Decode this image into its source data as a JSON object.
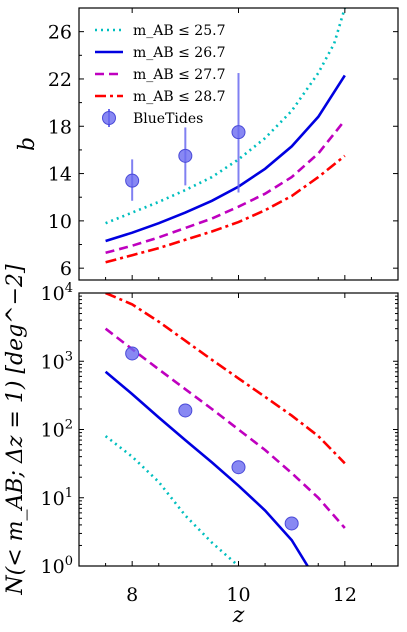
{
  "figure": {
    "x_label": "z",
    "top_y_label": "b",
    "bottom_y_label": "N(< m_AB; Δz = 1) [deg^−2]"
  },
  "chart_data": [
    {
      "type": "line",
      "panel": "top",
      "xlim": [
        7,
        13
      ],
      "ylim": [
        5,
        28
      ],
      "x_ticks": [
        8,
        10,
        12
      ],
      "y_ticks": [
        6,
        10,
        14,
        18,
        22,
        26
      ],
      "grid": false,
      "legend": "upper-left",
      "ylabel": "b",
      "series": [
        {
          "name": "m_AB ≤ 25.7",
          "color": "#00bfbf",
          "style": "dotted",
          "points": [
            [
              7.5,
              9.8
            ],
            [
              8,
              10.7
            ],
            [
              8.5,
              11.6
            ],
            [
              9,
              12.6
            ],
            [
              9.5,
              13.7
            ],
            [
              10,
              15.2
            ],
            [
              10.5,
              17.0
            ],
            [
              11,
              19.3
            ],
            [
              11.5,
              22.5
            ],
            [
              11.8,
              25.0
            ],
            [
              12,
              28.0
            ]
          ]
        },
        {
          "name": "m_AB ≤ 26.7",
          "color": "#0000e0",
          "style": "solid",
          "points": [
            [
              7.5,
              8.3
            ],
            [
              8,
              9.0
            ],
            [
              8.5,
              9.8
            ],
            [
              9,
              10.7
            ],
            [
              9.5,
              11.7
            ],
            [
              10,
              12.9
            ],
            [
              10.5,
              14.4
            ],
            [
              11,
              16.3
            ],
            [
              11.5,
              18.8
            ],
            [
              12,
              22.3
            ]
          ]
        },
        {
          "name": "m_AB ≤ 27.7",
          "color": "#bf00bf",
          "style": "dashed",
          "points": [
            [
              7.5,
              7.3
            ],
            [
              8,
              7.9
            ],
            [
              8.5,
              8.6
            ],
            [
              9,
              9.4
            ],
            [
              9.5,
              10.2
            ],
            [
              10,
              11.2
            ],
            [
              10.5,
              12.3
            ],
            [
              11,
              13.7
            ],
            [
              11.5,
              15.7
            ],
            [
              12,
              18.5
            ]
          ]
        },
        {
          "name": "m_AB ≤ 28.7",
          "color": "#ff0000",
          "style": "dashdot",
          "points": [
            [
              7.5,
              6.5
            ],
            [
              8,
              7.1
            ],
            [
              8.5,
              7.7
            ],
            [
              9,
              8.4
            ],
            [
              9.5,
              9.1
            ],
            [
              10,
              9.9
            ],
            [
              10.5,
              10.9
            ],
            [
              11,
              12.1
            ],
            [
              11.5,
              13.7
            ],
            [
              12,
              15.5
            ]
          ]
        },
        {
          "name": "BlueTides",
          "color": "#6a6af0",
          "style": "errorbar",
          "points": [
            [
              8,
              13.4,
              11.7,
              15.2
            ],
            [
              9,
              15.5,
              13.0,
              17.9
            ],
            [
              10,
              17.5,
              12.4,
              22.5
            ]
          ]
        }
      ]
    },
    {
      "type": "line",
      "panel": "bottom",
      "xlabel": "z",
      "xlim": [
        7,
        13
      ],
      "ylim_log10": [
        0,
        4
      ],
      "x_ticks": [
        8,
        10,
        12
      ],
      "y_ticks_log10": [
        0,
        1,
        2,
        3,
        4
      ],
      "y_scale": "log",
      "grid": false,
      "ylabel": "N(< m_AB; Δz = 1) [deg^−2]",
      "series": [
        {
          "name": "m_AB ≤ 25.7",
          "color": "#00bfbf",
          "style": "dotted",
          "points": [
            [
              7.5,
              80
            ],
            [
              8,
              40
            ],
            [
              8.5,
              17
            ],
            [
              9,
              5.5
            ],
            [
              9.5,
              2.2
            ],
            [
              10,
              1.0
            ]
          ]
        },
        {
          "name": "m_AB ≤ 26.7",
          "color": "#0000e0",
          "style": "solid",
          "points": [
            [
              7.5,
              700
            ],
            [
              8,
              330
            ],
            [
              8.5,
              150
            ],
            [
              9,
              70
            ],
            [
              9.5,
              33
            ],
            [
              10,
              15
            ],
            [
              10.5,
              6.5
            ],
            [
              11,
              2.4
            ],
            [
              11.3,
              1.0
            ]
          ]
        },
        {
          "name": "m_AB ≤ 27.7",
          "color": "#bf00bf",
          "style": "dashed",
          "points": [
            [
              7.5,
              3000
            ],
            [
              8,
              1500
            ],
            [
              8.5,
              760
            ],
            [
              9,
              390
            ],
            [
              9.5,
              200
            ],
            [
              10,
              100
            ],
            [
              10.5,
              50
            ],
            [
              11,
              23
            ],
            [
              11.5,
              10
            ],
            [
              12,
              3.6
            ]
          ]
        },
        {
          "name": "m_AB ≤ 28.7",
          "color": "#ff0000",
          "style": "dashdot",
          "points": [
            [
              7.5,
              10000
            ],
            [
              8,
              6800
            ],
            [
              8.5,
              3800
            ],
            [
              9,
              2000
            ],
            [
              9.5,
              1050
            ],
            [
              10,
              560
            ],
            [
              10.5,
              300
            ],
            [
              11,
              160
            ],
            [
              11.5,
              80
            ],
            [
              12,
              32
            ]
          ]
        },
        {
          "name": "BlueTides",
          "color": "#6a6af0",
          "style": "marker",
          "points": [
            [
              8,
              1300
            ],
            [
              9,
              190
            ],
            [
              10,
              28
            ],
            [
              11,
              4.2
            ]
          ]
        }
      ]
    }
  ]
}
